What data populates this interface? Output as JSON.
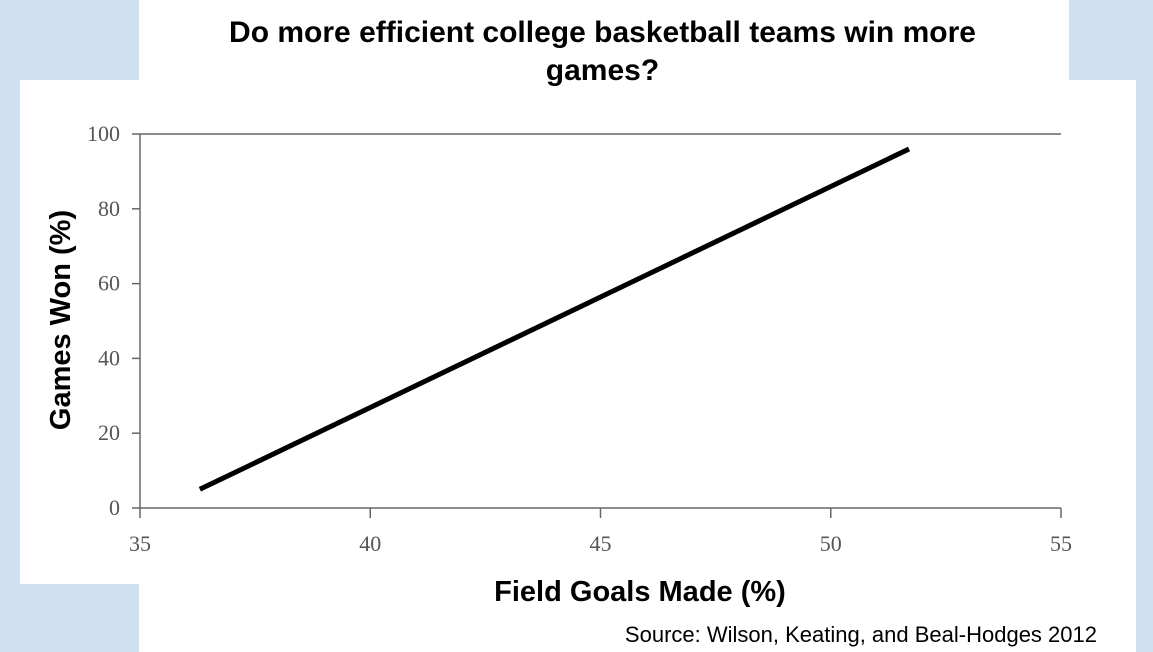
{
  "chart_data": {
    "type": "line",
    "title": "Do more efficient college basketball teams win more games?",
    "xlabel": "Field Goals Made (%)",
    "ylabel": "Games Won (%)",
    "xlim": [
      35,
      55
    ],
    "ylim": [
      0,
      100
    ],
    "xticks": [
      35,
      40,
      45,
      50,
      55
    ],
    "yticks": [
      0,
      20,
      40,
      60,
      80,
      100
    ],
    "grid": false,
    "series": [
      {
        "x": [
          36.3,
          51.7
        ],
        "y": [
          5,
          96
        ]
      }
    ],
    "source": "Source: Wilson, Keating, and Beal-Hodges 2012"
  }
}
